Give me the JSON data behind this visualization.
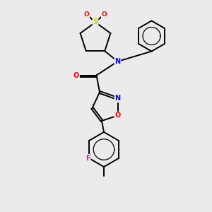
{
  "background_color": "#ebebeb",
  "bond_color": "#000000",
  "atom_colors": {
    "N": "#0000ff",
    "O": "#ff0000",
    "S": "#cccc00",
    "F": "#ff00cc",
    "C": "#000000"
  },
  "lw": 1.4,
  "fs": 6.5
}
